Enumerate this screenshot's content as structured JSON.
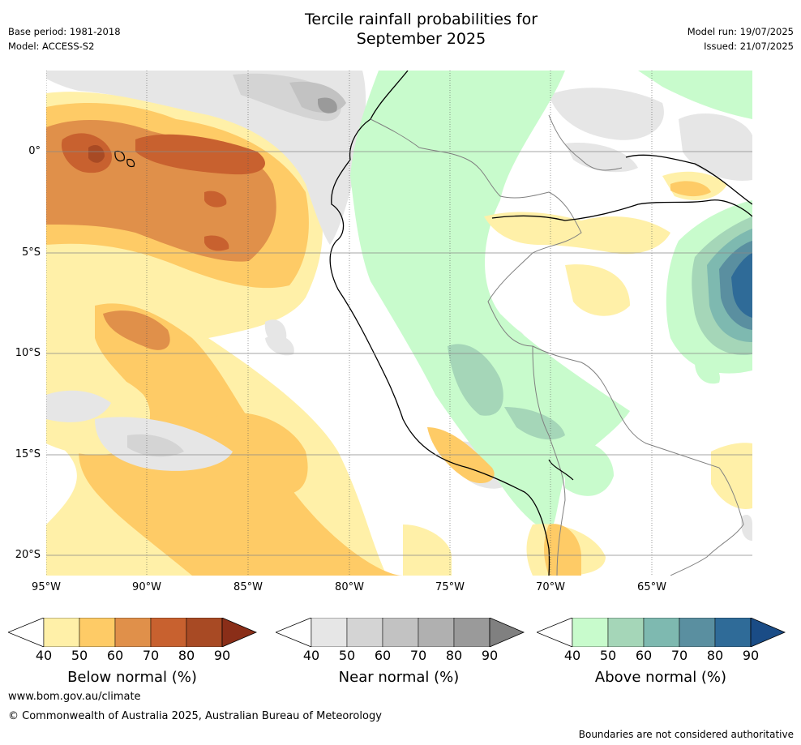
{
  "header": {
    "title_line1": "Tercile rainfall probabilities for",
    "title_line2": "September 2025",
    "base_period": "Base period: 1981-2018",
    "model": "Model: ACCESS-S2",
    "model_run": "Model run: 19/07/2025",
    "issued": "Issued: 21/07/2025"
  },
  "axes": {
    "lat_labels": [
      "0°",
      "5°S",
      "10°S",
      "15°S",
      "20°S"
    ],
    "lon_labels": [
      "95°W",
      "90°W",
      "85°W",
      "80°W",
      "75°W",
      "70°W",
      "65°W"
    ]
  },
  "colorbars": [
    {
      "label": "Below normal (%)",
      "ticks": [
        "40",
        "50",
        "60",
        "70",
        "80",
        "90"
      ],
      "colors": [
        "#fff0a8",
        "#fecb66",
        "#e0904a",
        "#c8612f",
        "#a84a24",
        "#8a2e18"
      ]
    },
    {
      "label": "Near normal (%)",
      "ticks": [
        "40",
        "50",
        "60",
        "70",
        "80",
        "90"
      ],
      "colors": [
        "#e6e6e6",
        "#d4d4d4",
        "#c2c2c2",
        "#b0b0b0",
        "#9a9a9a",
        "#808080"
      ]
    },
    {
      "label": "Above normal (%)",
      "ticks": [
        "40",
        "50",
        "60",
        "70",
        "80",
        "90"
      ],
      "colors": [
        "#c8fbcc",
        "#a5d6b8",
        "#7eb9b0",
        "#5a8fa0",
        "#2f6b98",
        "#1a4c86"
      ]
    }
  ],
  "footer": {
    "url": "www.bom.gov.au/climate",
    "copyright": "© Commonwealth of Australia 2025, Australian Bureau of Meteorology",
    "disclaimer": "Boundaries are not considered authoritative"
  }
}
